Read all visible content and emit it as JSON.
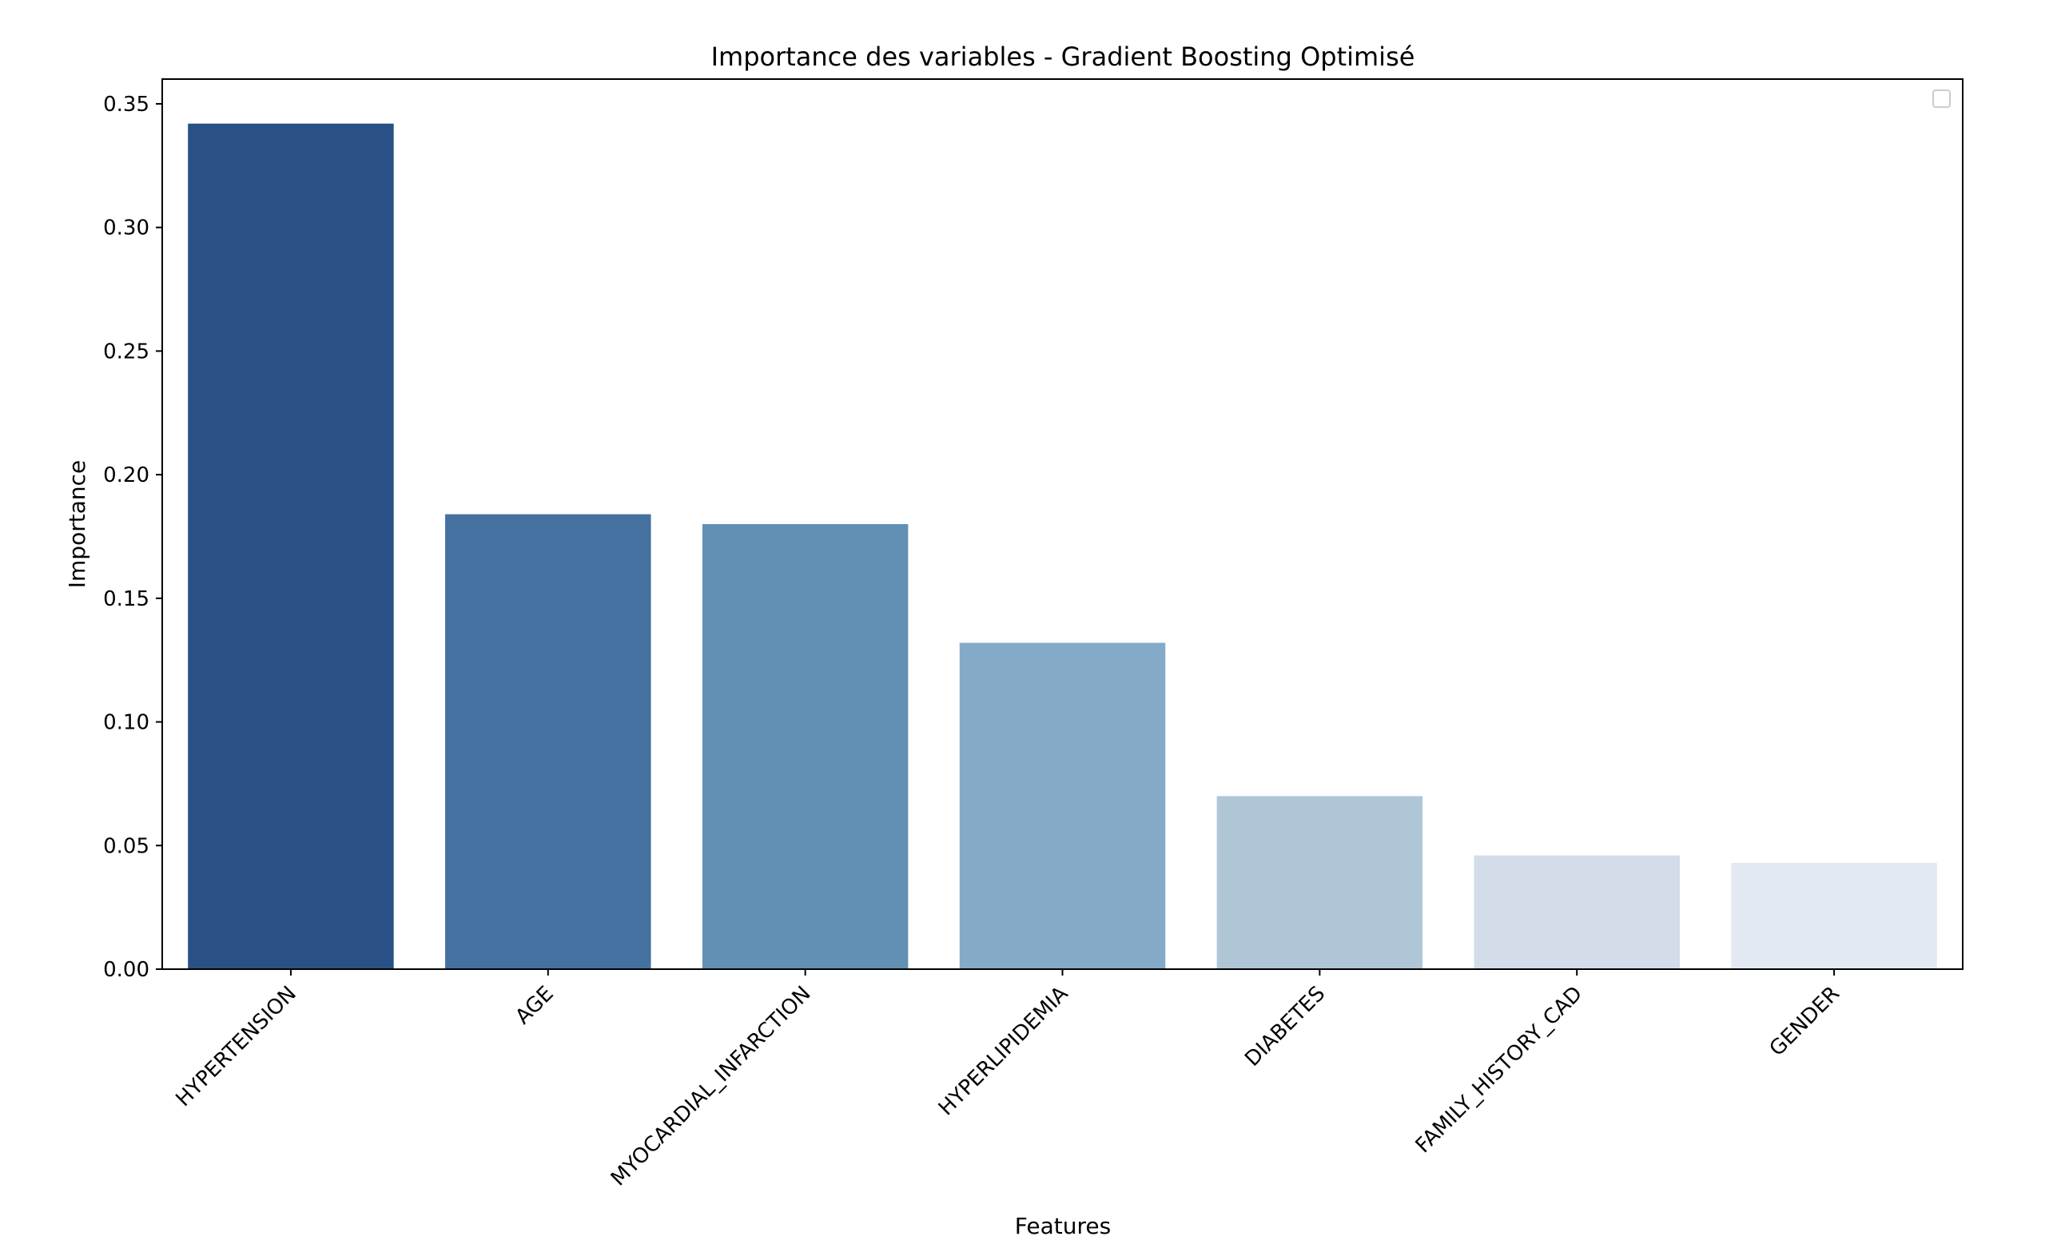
{
  "chart_data": {
    "type": "bar",
    "title": "Importance des variables - Gradient Boosting Optimisé",
    "xlabel": "Features",
    "ylabel": "Importance",
    "categories": [
      "HYPERTENSION",
      "AGE",
      "MYOCARDIAL_INFARCTION",
      "HYPERLIPIDEMIA",
      "DIABETES",
      "FAMILY_HISTORY_CAD",
      "GENDER"
    ],
    "values": [
      0.342,
      0.184,
      0.18,
      0.132,
      0.07,
      0.046,
      0.043
    ],
    "colors": [
      "#2a5185",
      "#4471a0",
      "#6190b4",
      "#84aac8",
      "#afc6d7",
      "#d2dde9",
      "#e2e9f2"
    ],
    "ylim": [
      0,
      0.36
    ],
    "yticks": [
      "0.00",
      "0.05",
      "0.10",
      "0.15",
      "0.20",
      "0.25",
      "0.30",
      "0.35"
    ],
    "x_tick_rotation_deg": 45,
    "grid": false,
    "legend": "top-right (empty)"
  }
}
